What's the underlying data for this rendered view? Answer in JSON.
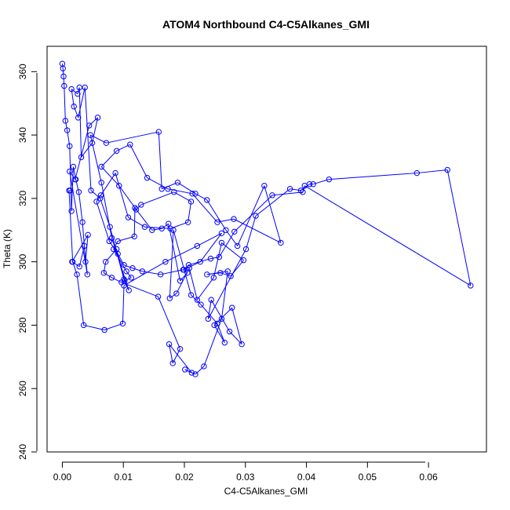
{
  "chart_data": {
    "type": "scatter",
    "title": "ATOM4 Northbound C4-C5Alkanes_GMI",
    "xlabel": "C4-C5Alkanes_GMI",
    "ylabel": "Theta (K)",
    "xlim": [
      -0.0025,
      0.0695
    ],
    "ylim": [
      240,
      368
    ],
    "xticks": [
      0.0,
      0.01,
      0.02,
      0.03,
      0.04,
      0.05,
      0.06
    ],
    "xtick_labels": [
      "0.00",
      "0.01",
      "0.02",
      "0.03",
      "0.04",
      "0.05",
      "0.06"
    ],
    "yticks": [
      240,
      260,
      280,
      300,
      320,
      340,
      360
    ],
    "ytick_labels": [
      "240",
      "260",
      "280",
      "300",
      "320",
      "340",
      "360"
    ],
    "grid": false,
    "legend": false,
    "series": [
      {
        "color": "#0000ff",
        "marker": "open-circle",
        "connected": true,
        "x": [
          0.0,
          0.0001,
          0.0002,
          0.0003,
          0.0005,
          0.0008,
          0.0012,
          0.0015,
          0.0018,
          0.0022,
          0.0027,
          0.0033,
          0.0038,
          0.0042,
          0.0016,
          0.0028,
          0.0036,
          0.0041,
          0.0012,
          0.0021,
          0.0044,
          0.0058,
          0.0049,
          0.0031,
          0.0028,
          0.0025,
          0.0015,
          0.0019,
          0.0026,
          0.0037,
          0.0047,
          0.0062,
          0.0078,
          0.0101,
          0.0109,
          0.0081,
          0.0064,
          0.0046,
          0.0072,
          0.0158,
          0.0163,
          0.0189,
          0.0218,
          0.0237,
          0.0268,
          0.0287,
          0.0331,
          0.0358,
          0.0281,
          0.0254,
          0.0213,
          0.0173,
          0.0139,
          0.0111,
          0.0089,
          0.0064,
          0.0093,
          0.0121,
          0.0129,
          0.0183,
          0.0211,
          0.0206,
          0.0177,
          0.0135,
          0.0108,
          0.0087,
          0.0063,
          0.0056,
          0.0077,
          0.0091,
          0.0101,
          0.0115,
          0.0131,
          0.0161,
          0.0198,
          0.0205,
          0.0193,
          0.0174,
          0.0163,
          0.0147,
          0.0119,
          0.0118,
          0.0091,
          0.0084,
          0.0105,
          0.0113,
          0.0102,
          0.0089,
          0.0071,
          0.0068,
          0.0081,
          0.0097,
          0.0157,
          0.0193,
          0.0181,
          0.0175,
          0.0212,
          0.0201,
          0.0218,
          0.0232,
          0.0261,
          0.0271,
          0.0237,
          0.0259,
          0.0276,
          0.0297,
          0.0261,
          0.0248,
          0.0221,
          0.0208,
          0.0187,
          0.0176,
          0.0182,
          0.0211,
          0.0227,
          0.0254,
          0.0266,
          0.0249,
          0.0278,
          0.0294,
          0.0274,
          0.0244,
          0.0239,
          0.0301,
          0.0317,
          0.0373,
          0.0391,
          0.0405,
          0.0411,
          0.0437,
          0.0581,
          0.0631,
          0.0669,
          0.0397,
          0.0394,
          0.0344,
          0.0282,
          0.0257,
          0.0243,
          0.0207,
          0.0199,
          0.0226,
          0.0261,
          0.0221,
          0.0169,
          0.0101,
          0.0099,
          0.0069,
          0.0035,
          0.0024,
          0.0017,
          0.0011,
          0.0013
        ],
        "y": [
          362.5,
          361,
          358.5,
          355.5,
          344.5,
          341.5,
          336.5,
          316,
          330,
          326,
          322,
          312.5,
          300,
          308.5,
          300,
          298.5,
          305,
          296,
          328.5,
          326,
          343,
          345.5,
          337.5,
          333,
          355,
          353,
          354.5,
          349,
          345.5,
          355,
          322.5,
          320,
          311,
          294.5,
          291,
          307.5,
          325,
          340,
          337.5,
          341,
          323,
          325,
          321.5,
          319.5,
          310,
          305,
          324,
          306,
          313.5,
          312.5,
          321.5,
          323,
          326.5,
          337,
          335,
          330,
          324,
          316.5,
          318,
          322,
          319,
          312.5,
          310.5,
          311,
          314,
          328,
          321,
          319,
          306.5,
          302.5,
          299,
          298,
          297,
          296,
          297.5,
          296.5,
          294,
          312,
          310.5,
          310,
          317,
          308,
          306.5,
          304,
          297,
          295,
          294,
          304,
          300,
          296.5,
          295,
          293.5,
          289,
          272.5,
          268,
          274,
          265,
          266,
          264.5,
          267,
          282,
          297,
          296,
          296.5,
          295.5,
          300.5,
          306,
          295,
          288,
          298,
          290,
          288.5,
          310,
          289.5,
          286.5,
          280.5,
          274.5,
          280,
          285.5,
          274,
          278,
          288,
          282,
          304,
          314.5,
          323,
          322.5,
          324.5,
          324.5,
          326,
          328,
          329,
          292.5,
          324,
          322,
          321,
          309.5,
          301.5,
          301,
          299,
          297.5,
          300,
          309,
          305,
          300,
          292.5,
          280.5,
          278.5,
          280,
          296,
          300,
          322.5,
          322.5
        ]
      }
    ]
  }
}
